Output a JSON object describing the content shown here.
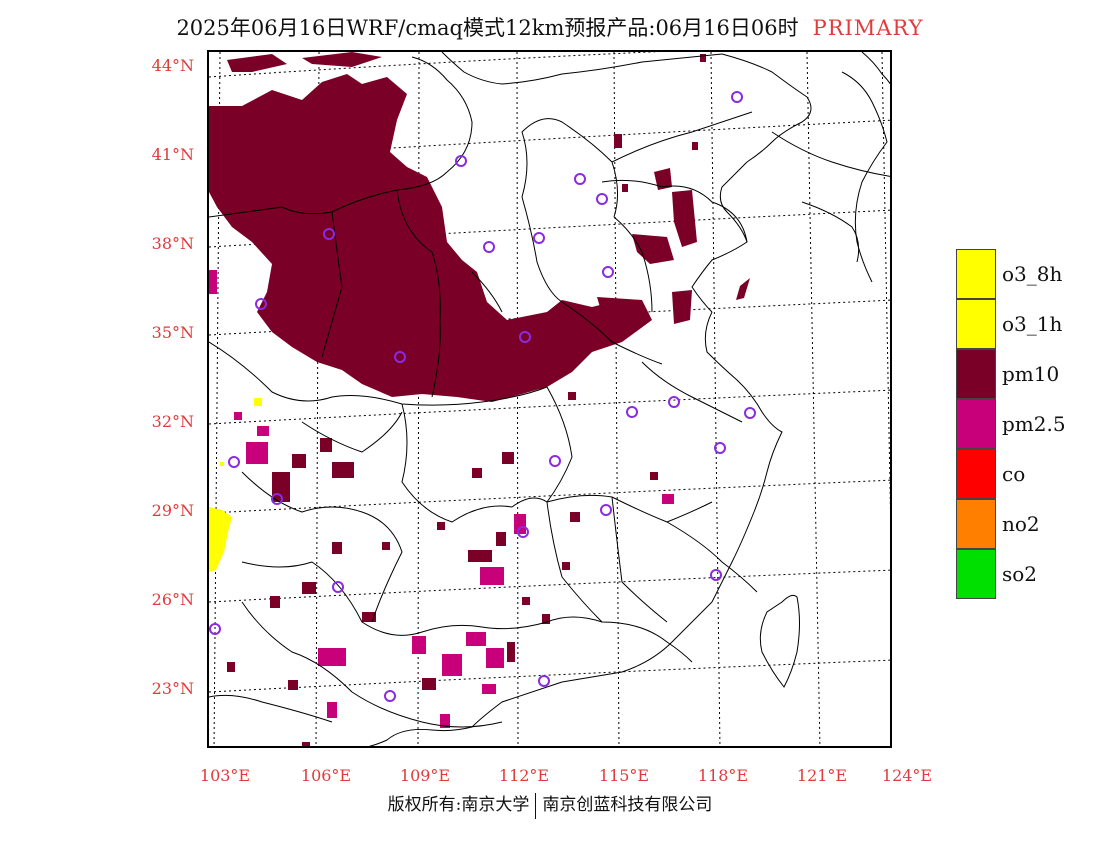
{
  "header": {
    "title": "2025年06月16日WRF/cmaq模式12km预报产品:06月16日06时",
    "tag": "PRIMARY"
  },
  "axes": {
    "lat_labels": [
      "44°N",
      "41°N",
      "38°N",
      "35°N",
      "32°N",
      "29°N",
      "26°N",
      "23°N"
    ],
    "lon_labels": [
      "103°E",
      "106°E",
      "109°E",
      "112°E",
      "115°E",
      "118°E",
      "121°E",
      "124°E"
    ]
  },
  "legend": {
    "items": [
      {
        "label": "o3_8h",
        "color": "#ffff00"
      },
      {
        "label": "o3_1h",
        "color": "#ffff00"
      },
      {
        "label": "pm10",
        "color": "#7a0027"
      },
      {
        "label": "pm2.5",
        "color": "#c8007a"
      },
      {
        "label": "co",
        "color": "#ff0000"
      },
      {
        "label": "no2",
        "color": "#ff7f00"
      },
      {
        "label": "so2",
        "color": "#00e000"
      }
    ]
  },
  "colors": {
    "pm10": "#7a0027",
    "pm25": "#c8007a",
    "o3": "#ffff00",
    "station": "#8a2be2",
    "label": "#e03a3a"
  },
  "footer": {
    "left": "版权所有:南京大学",
    "right": "南京创蓝科技有限公司"
  }
}
